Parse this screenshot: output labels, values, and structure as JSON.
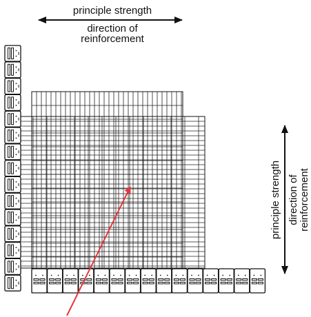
{
  "top_label": {
    "line1": "principle strength",
    "line2": "direction of",
    "line3": "reinforcement"
  },
  "side_label": {
    "line1": "principle strength",
    "line2": "direction of",
    "line3": "reinforcement"
  },
  "colors": {
    "ink": "#111111",
    "grid": "#222222",
    "pointer_arrow": "#e8353b",
    "background": "#ffffff"
  },
  "icons": {
    "top_arrow": "double-headed-horizontal-arrow",
    "side_arrow": "double-headed-vertical-arrow",
    "pointer": "red-pointer-arrow",
    "block": "segmental-retaining-wall-block"
  }
}
